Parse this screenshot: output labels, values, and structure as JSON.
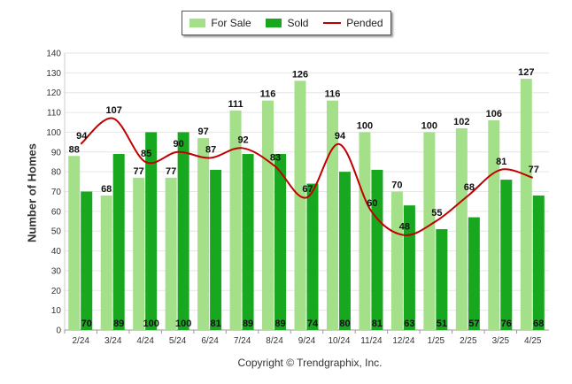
{
  "legend": {
    "for_sale": "For Sale",
    "sold": "Sold",
    "pended": "Pended"
  },
  "copyright": "Copyright © Trendgraphix, Inc.",
  "colors": {
    "for_sale": "#a4df8a",
    "sold": "#17a81f",
    "pended": "#c00000",
    "grid": "#e6e6e6"
  },
  "chart_data": {
    "type": "bar",
    "ylabel": "Number of Homes",
    "ylim": [
      0,
      140
    ],
    "yticks": [
      0,
      10,
      20,
      30,
      40,
      50,
      60,
      70,
      80,
      90,
      100,
      110,
      120,
      130,
      140
    ],
    "grid": true,
    "legend_position": "top-center",
    "categories": [
      "2/24",
      "3/24",
      "4/24",
      "5/24",
      "6/24",
      "7/24",
      "8/24",
      "9/24",
      "10/24",
      "11/24",
      "12/24",
      "1/25",
      "2/25",
      "3/25",
      "4/25"
    ],
    "series": [
      {
        "name": "For Sale",
        "type": "bar",
        "values": [
          88,
          68,
          77,
          77,
          97,
          111,
          116,
          126,
          116,
          100,
          70,
          100,
          102,
          106,
          127
        ]
      },
      {
        "name": "Sold",
        "type": "bar",
        "values": [
          70,
          89,
          100,
          100,
          81,
          89,
          89,
          74,
          80,
          81,
          63,
          51,
          57,
          76,
          68
        ]
      },
      {
        "name": "Pended",
        "type": "line",
        "values": [
          94,
          107,
          85,
          90,
          87,
          92,
          83,
          67,
          94,
          60,
          48,
          55,
          68,
          81,
          77
        ]
      }
    ]
  }
}
